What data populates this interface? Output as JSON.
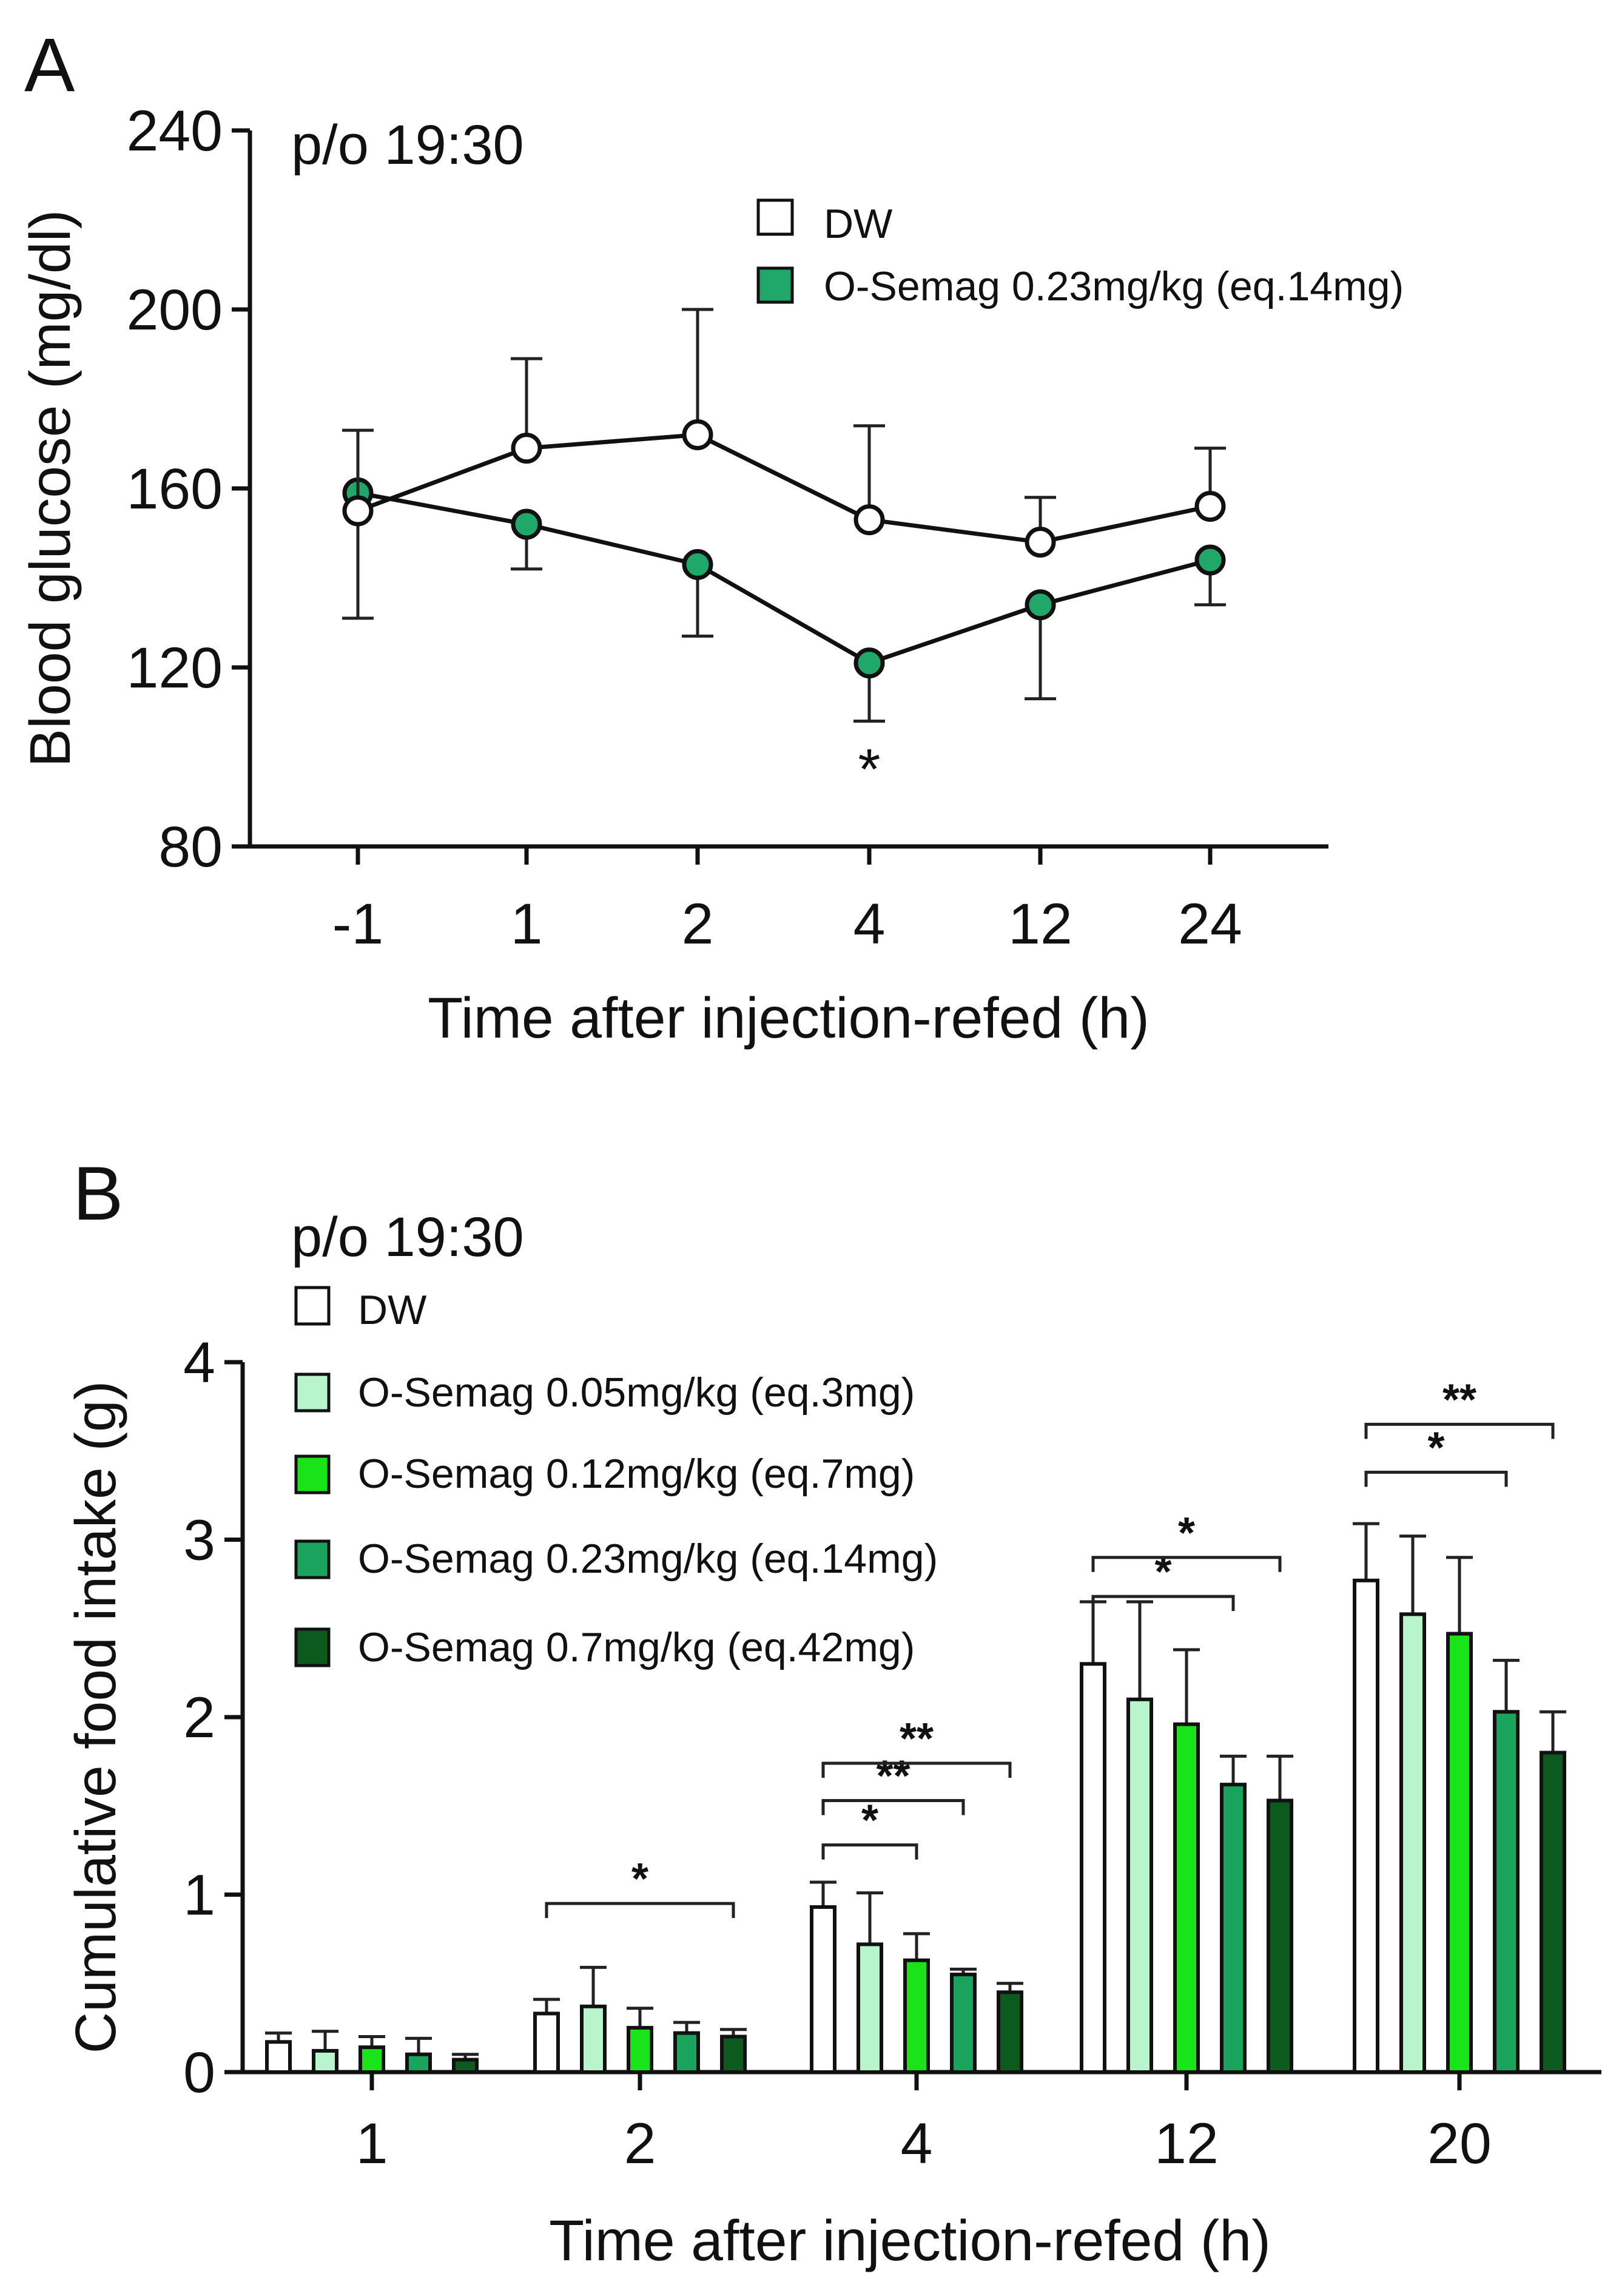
{
  "chart_data": [
    {
      "panel": "A",
      "type": "line",
      "annotation": "p/o 19:30",
      "xlabel": "Time after injection-refed (h)",
      "ylabel": "Blood glucose (mg/dl)",
      "categories": [
        "-1",
        "1",
        "2",
        "4",
        "12",
        "24"
      ],
      "ylim": [
        80,
        240
      ],
      "yticks": [
        80,
        120,
        160,
        200,
        240
      ],
      "series": [
        {
          "name": "DW",
          "fill": "#ffffff",
          "values": [
            155,
            169,
            172,
            153,
            148,
            156
          ],
          "err_upper": [
            173,
            189,
            200,
            174,
            158,
            169
          ],
          "err_lower": [
            131,
            null,
            null,
            null,
            null,
            null
          ]
        },
        {
          "name": "O-Semag 0.23mg/kg (eq.14mg)",
          "fill": "#1fa86a",
          "values": [
            159,
            152,
            143,
            121,
            134,
            144
          ],
          "err_upper": [
            null,
            null,
            null,
            null,
            null,
            null
          ],
          "err_lower": [
            null,
            142,
            127,
            108,
            113,
            134
          ]
        }
      ],
      "significance": [
        {
          "category": "4",
          "label": "*"
        }
      ]
    },
    {
      "panel": "B",
      "type": "bar",
      "annotation": "p/o 19:30",
      "xlabel": "Time after injection-refed (h)",
      "ylabel": "Cumulative food intake (g)",
      "categories": [
        "1",
        "2",
        "4",
        "12",
        "20"
      ],
      "ylim": [
        0,
        4
      ],
      "yticks": [
        0,
        1,
        2,
        3,
        4
      ],
      "series": [
        {
          "name": "DW",
          "color": "#ffffff",
          "values": [
            0.17,
            0.33,
            0.93,
            2.3,
            2.77
          ],
          "err": [
            0.05,
            0.08,
            0.14,
            0.35,
            0.32
          ]
        },
        {
          "name": "O-Semag 0.05mg/kg (eq.3mg)",
          "color": "#b8f5cd",
          "values": [
            0.12,
            0.37,
            0.72,
            2.1,
            2.58
          ],
          "err": [
            0.11,
            0.22,
            0.29,
            0.55,
            0.44
          ]
        },
        {
          "name": "O-Semag 0.12mg/kg (eq.7mg)",
          "color": "#19e319",
          "values": [
            0.14,
            0.25,
            0.63,
            1.96,
            2.47
          ],
          "err": [
            0.06,
            0.11,
            0.15,
            0.42,
            0.43
          ]
        },
        {
          "name": "O-Semag 0.23mg/kg (eq.14mg)",
          "color": "#1aa35c",
          "values": [
            0.1,
            0.22,
            0.55,
            1.62,
            2.03
          ],
          "err": [
            0.09,
            0.06,
            0.03,
            0.16,
            0.29
          ]
        },
        {
          "name": "O-Semag 0.7mg/kg (eq.42mg)",
          "color": "#0d5a1e",
          "values": [
            0.07,
            0.2,
            0.45,
            1.53,
            1.8
          ],
          "err": [
            0.03,
            0.04,
            0.05,
            0.25,
            0.23
          ]
        }
      ],
      "significance": [
        {
          "category": "2",
          "from": 0,
          "to": 4,
          "label": "*",
          "level": 0.95
        },
        {
          "category": "4",
          "from": 0,
          "to": 2,
          "label": "*",
          "level": 1.28
        },
        {
          "category": "4",
          "from": 0,
          "to": 3,
          "label": "**",
          "level": 1.53
        },
        {
          "category": "4",
          "from": 0,
          "to": 4,
          "label": "**",
          "level": 1.74
        },
        {
          "category": "12",
          "from": 0,
          "to": 3,
          "label": "*",
          "level": 2.68
        },
        {
          "category": "12",
          "from": 0,
          "to": 4,
          "label": "*",
          "level": 2.9
        },
        {
          "category": "20",
          "from": 0,
          "to": 3,
          "label": "*",
          "level": 3.38
        },
        {
          "category": "20",
          "from": 0,
          "to": 4,
          "label": "**",
          "level": 3.65
        }
      ]
    }
  ]
}
